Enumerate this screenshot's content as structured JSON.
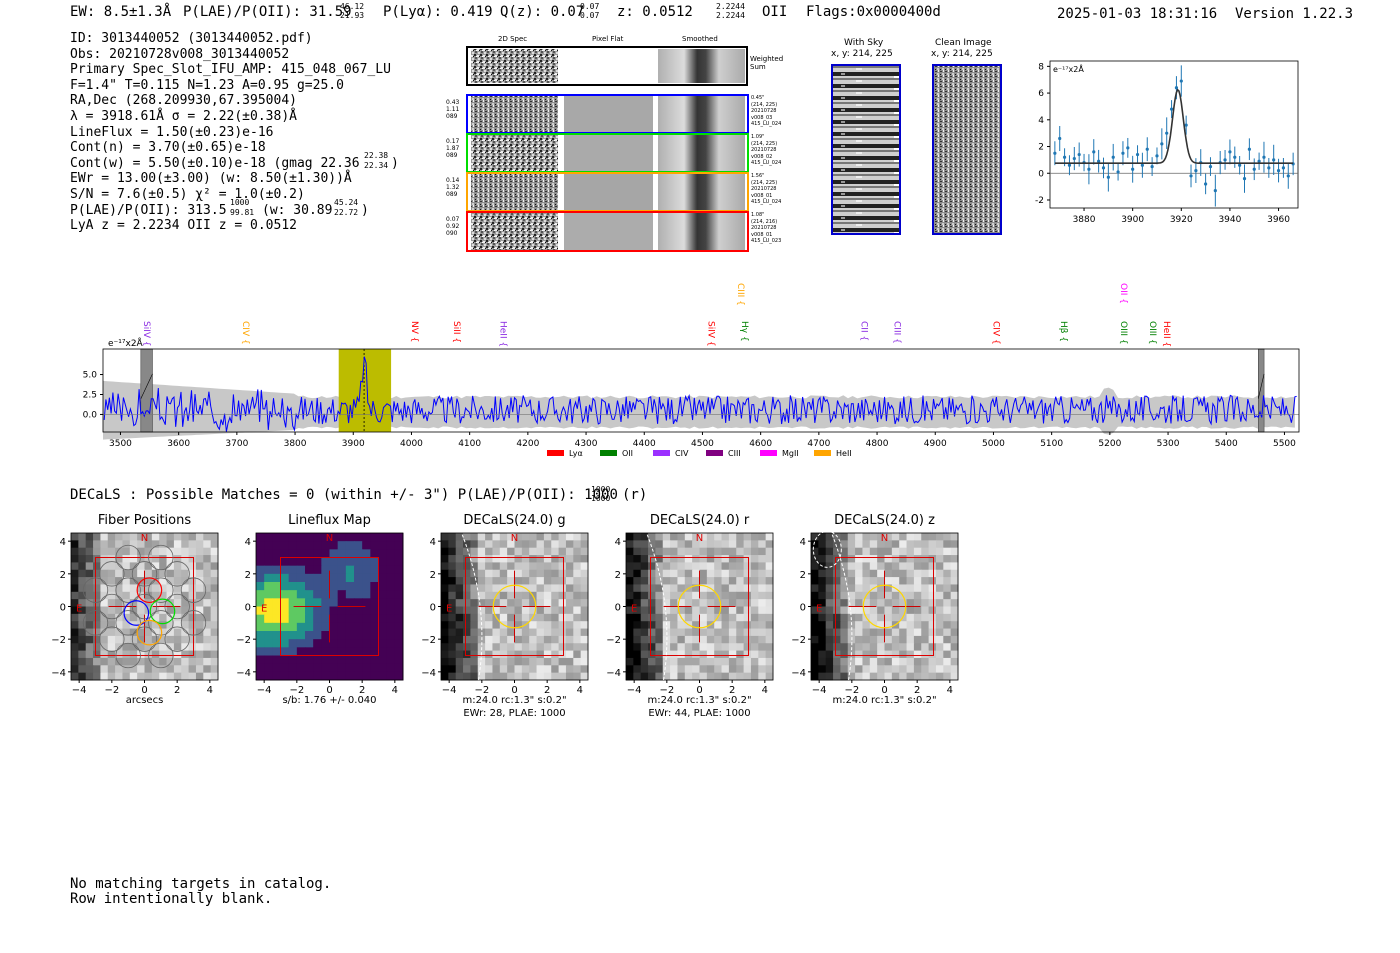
{
  "header": {
    "ew": "EW: 8.5±1.3Å",
    "plae": "P(LAE)/P(OII): 31.59",
    "plae_hi": "46.12",
    "plae_lo": "21.93",
    "plya": "P(Lyα): 0.419",
    "q": "Q(z): 0.07",
    "q_hi": "0.07",
    "q_lo": "0.07",
    "z": "z: 0.0512",
    "z_hi": "2.2244",
    "z_lo": "2.2244",
    "line": "OII",
    "flags": "Flags:0x0000400d",
    "datetime": "2025-01-03 18:31:16",
    "version": "Version 1.22.3"
  },
  "info_lines": [
    "ID: 3013440052 (3013440052.pdf)",
    "Obs: 20210728v008_3013440052",
    "Primary Spec_Slot_IFU_AMP: 415_048_067_LU",
    "F=1.4\"  T=0.115  N=1.23  A=0.95  g=25.0",
    "RA,Dec (268.209930,67.395004)",
    "λ = 3918.61Å  σ = 2.22(±0.38)Å",
    "LineFlux = 1.50(±0.23)e-16",
    "Cont(n) = 3.70(±0.65)e-18",
    "Cont(w) = 5.50(±0.10)e-18 (gmag 22.36",
    "EWr = 13.00(±3.00) (w: 8.50(±1.30))Å",
    "S/N = 7.6(±0.5)  χ² = 1.0(±0.2)",
    "P(LAE)/P(OII): 313.5",
    "LyA z = 2.2234  OII z = 0.0512"
  ],
  "info_supers": {
    "gmag_hi": "22.38",
    "gmag_lo": "22.34",
    "plae_hi": "1000",
    "plae_lo": "99.81",
    "plae_w": "(w: 30.89",
    "plae_w_hi": "45.24",
    "plae_w_lo": "22.72"
  },
  "cutouts": {
    "col_titles": [
      "2D Spec",
      "Pixel Flat",
      "Smoothed"
    ],
    "weighted_label": "Weighted\nSum",
    "rows": [
      {
        "left": [
          "0.43",
          "1.11",
          "089"
        ],
        "right": [
          "0.45\"",
          "(214, 225)",
          "20210728",
          "v008_03",
          "415_LU_024"
        ],
        "color": "#0000ff"
      },
      {
        "left": [
          "0.17",
          "1.87",
          "089"
        ],
        "right": [
          "1.09\"",
          "(214, 225)",
          "20210728",
          "v008_02",
          "415_LU_024"
        ],
        "color": "#00dd00"
      },
      {
        "left": [
          "0.14",
          "1.32",
          "089"
        ],
        "right": [
          "1.56\"",
          "(214, 225)",
          "20210728",
          "v008_01",
          "415_LU_024"
        ],
        "color": "#ffa500"
      },
      {
        "left": [
          "0.07",
          "0.92",
          "090"
        ],
        "right": [
          "1.08\"",
          "(214, 216)",
          "20210728",
          "v008_01",
          "415_LU_023"
        ],
        "color": "#ff0000"
      }
    ],
    "with_sky": "With Sky",
    "with_sky_xy": "x, y: 214, 225",
    "clean": "Clean Image",
    "clean_xy": "x, y: 214, 225"
  },
  "zoom_chart": {
    "type": "scatter",
    "unit_label": "e⁻¹⁷x2Å",
    "xlim": [
      3866,
      3968
    ],
    "ylim": [
      -2.6,
      8.4
    ],
    "xticks": [
      "3880",
      "3900",
      "3920",
      "3940",
      "3960"
    ],
    "yticks": [
      "-2",
      "0",
      "2",
      "4",
      "6",
      "8"
    ],
    "fit": {
      "center": 3918.61,
      "sigma": 2.22,
      "amp": 5.5,
      "cont": 0.75
    },
    "points": [
      [
        3868,
        1.5
      ],
      [
        3870,
        2.6
      ],
      [
        3872,
        1.2
      ],
      [
        3874,
        0.6
      ],
      [
        3876,
        1.1
      ],
      [
        3878,
        1.4
      ],
      [
        3880,
        0.8
      ],
      [
        3882,
        0.3
      ],
      [
        3884,
        1.6
      ],
      [
        3886,
        0.9
      ],
      [
        3888,
        0.4
      ],
      [
        3890,
        -0.3
      ],
      [
        3892,
        1.2
      ],
      [
        3894,
        0.1
      ],
      [
        3896,
        1.5
      ],
      [
        3898,
        1.9
      ],
      [
        3900,
        0.3
      ],
      [
        3902,
        1.4
      ],
      [
        3904,
        0.6
      ],
      [
        3906,
        1.8
      ],
      [
        3908,
        0.5
      ],
      [
        3910,
        1.3
      ],
      [
        3912,
        2.2
      ],
      [
        3914,
        3.0
      ],
      [
        3916,
        4.8
      ],
      [
        3918,
        6.4
      ],
      [
        3920,
        6.9
      ],
      [
        3922,
        3.6
      ],
      [
        3924,
        -0.2
      ],
      [
        3926,
        0.2
      ],
      [
        3928,
        0.8
      ],
      [
        3930,
        -0.8
      ],
      [
        3932,
        0.5
      ],
      [
        3934,
        -1.3
      ],
      [
        3936,
        0.8
      ],
      [
        3938,
        1.0
      ],
      [
        3940,
        1.6
      ],
      [
        3942,
        1.2
      ],
      [
        3944,
        0.6
      ],
      [
        3946,
        -0.4
      ],
      [
        3948,
        1.8
      ],
      [
        3950,
        0.3
      ],
      [
        3952,
        0.9
      ],
      [
        3954,
        1.2
      ],
      [
        3956,
        0.4
      ],
      [
        3958,
        1.0
      ],
      [
        3960,
        0.2
      ],
      [
        3962,
        0.4
      ],
      [
        3964,
        -0.2
      ],
      [
        3966,
        0.7
      ]
    ]
  },
  "chart_data": {
    "type": "line",
    "unit_label": "e⁻¹⁷x2Å",
    "xlim": [
      3470,
      5525
    ],
    "ylim": [
      -2.2,
      8.2
    ],
    "xticks": [
      "3500",
      "3600",
      "3700",
      "3800",
      "3900",
      "4000",
      "4100",
      "4200",
      "4300",
      "4400",
      "4500",
      "4600",
      "4700",
      "4800",
      "4900",
      "5000",
      "5100",
      "5200",
      "5300",
      "5400",
      "5500"
    ],
    "yticks": [
      "0.0",
      "2.5",
      "5.0"
    ],
    "highlight": [
      3875,
      3965
    ],
    "emission_wavelength": 3918.6,
    "masked": [
      [
        3535,
        3555
      ],
      [
        5455,
        5465
      ]
    ],
    "line_markers": [
      {
        "name": "SiIV",
        "wave": 3535,
        "color": "#8a2be2",
        "row": 0
      },
      {
        "name": "CIV",
        "wave": 3705,
        "color": "#ffa500",
        "row": 0
      },
      {
        "name": "NV",
        "wave": 3996,
        "color": "#ff0000",
        "row": 0
      },
      {
        "name": "SiII",
        "wave": 4068,
        "color": "#ff0000",
        "row": 0
      },
      {
        "name": "HeII",
        "wave": 4148,
        "color": "#8a2be2",
        "row": 0
      },
      {
        "name": "SiIV",
        "wave": 4505,
        "color": "#ff0000",
        "row": 0
      },
      {
        "name": "CIII",
        "wave": 4556,
        "color": "#ffa500",
        "row": 1
      },
      {
        "name": "Hγ",
        "wave": 4563,
        "color": "#008000",
        "row": 0
      },
      {
        "name": "CII",
        "wave": 4768,
        "color": "#8a2be2",
        "row": 0
      },
      {
        "name": "CIII",
        "wave": 4825,
        "color": "#8a2be2",
        "row": 0
      },
      {
        "name": "CIV",
        "wave": 4995,
        "color": "#ff0000",
        "row": 0
      },
      {
        "name": "Hβ",
        "wave": 5111,
        "color": "#008000",
        "row": 0
      },
      {
        "name": "OII",
        "wave": 5214,
        "color": "#ff00ff",
        "row": 1
      },
      {
        "name": "OIII",
        "wave": 5214,
        "color": "#008000",
        "row": 0
      },
      {
        "name": "OIII",
        "wave": 5264,
        "color": "#008000",
        "row": 0
      },
      {
        "name": "HeII",
        "wave": 5288,
        "color": "#ff0000",
        "row": 0
      }
    ],
    "legend": [
      {
        "name": "Lyα",
        "color": "#ff0000"
      },
      {
        "name": "OII",
        "color": "#008000"
      },
      {
        "name": "CIV",
        "color": "#9b30ff"
      },
      {
        "name": "CIII",
        "color": "#800080"
      },
      {
        "name": "MgII",
        "color": "#ff00ff"
      },
      {
        "name": "HeII",
        "color": "#ffa500"
      }
    ]
  },
  "decals_line": {
    "prefix": "DECaLS : Possible Matches = 0 (within +/- 3\")  P(LAE)/P(OII): 1000",
    "hi": "1000",
    "lo": "1000",
    "suffix": "(r)"
  },
  "panels": [
    {
      "title": "Fiber Positions",
      "caption1": "arcsecs",
      "caption2": ""
    },
    {
      "title": "Lineflux Map",
      "caption1": "s/b: 1.76 +/- 0.040",
      "caption2": ""
    },
    {
      "title": "DECaLS(24.0) g",
      "caption1": "m:24.0 rc:1.3\"  s:0.2\"",
      "caption2": "EWr: 28, PLAE: 1000"
    },
    {
      "title": "DECaLS(24.0) r",
      "caption1": "m:24.0 rc:1.3\"  s:0.2\"",
      "caption2": "EWr: 44, PLAE: 1000"
    },
    {
      "title": "DECaLS(24.0) z",
      "caption1": "m:24.0 rc:1.3\"  s:0.2\"",
      "caption2": ""
    }
  ],
  "panel_axes": {
    "ticks": [
      "−4",
      "−2",
      "0",
      "2",
      "4"
    ],
    "north": "N",
    "east": "E"
  },
  "footer": {
    "line1": "No matching targets in catalog.",
    "line2": "Row intentionally blank."
  }
}
